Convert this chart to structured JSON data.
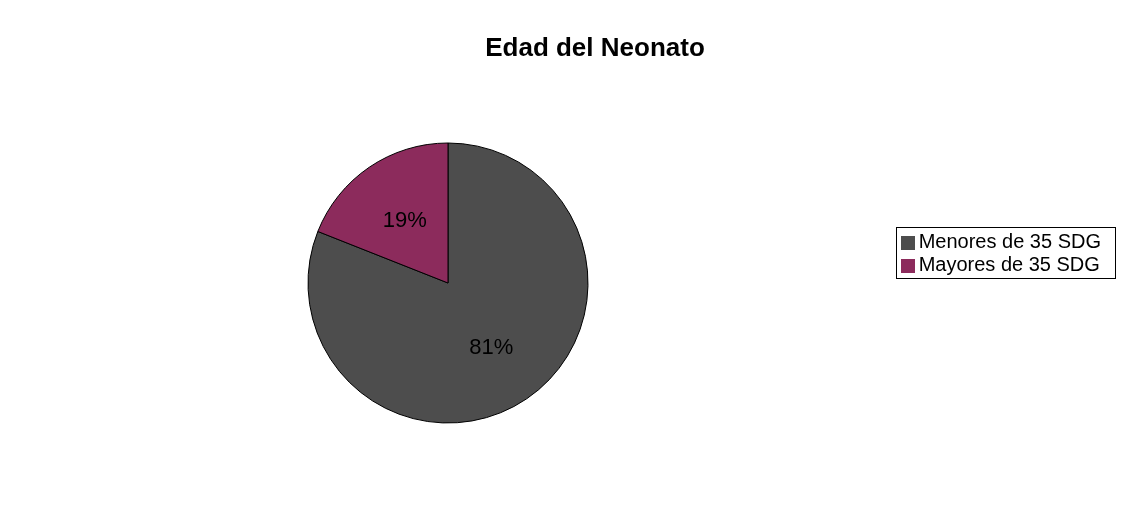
{
  "chart_data": {
    "type": "pie",
    "title": "Edad del Neonato",
    "categories": [
      "Menores de 35 SDG",
      "Mayores de 35 SDG"
    ],
    "values": [
      81,
      19
    ],
    "colors": [
      "#4d4d4d",
      "#8c2b5c"
    ],
    "value_labels": [
      "81%",
      "19%"
    ],
    "legend": "right"
  }
}
